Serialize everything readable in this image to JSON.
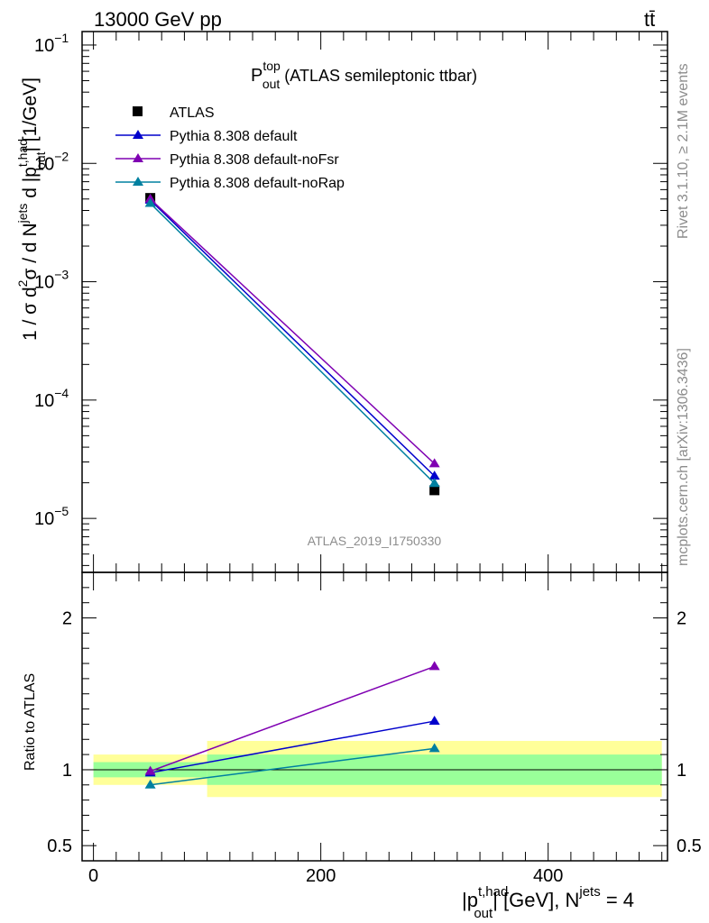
{
  "header": {
    "energy_label": "13000 GeV pp",
    "process_label": "tt̄",
    "side_label_rivet": "Rivet 3.1.10, ≥ 2.1M events",
    "side_label_mcplots": "mcplots.cern.ch [arXiv:1306.3436]"
  },
  "chart_data": [
    {
      "type": "line",
      "title": {
        "main": "P",
        "sup": "top",
        "sub": "out",
        "rest": " (ATLAS semileptonic ttbar)"
      },
      "ylabel": "1 / σ d²σ / d N^jets d |p_out^t,had| [1/GeV]",
      "ylabel_parts": {
        "a": "1 / σ d",
        "b_sup": "2",
        "c": "σ / d N",
        "d_sup": "jets",
        "e": " d |p",
        "f_sup": "t,had",
        "f_sub": "out",
        "g": "| [1/GeV]"
      },
      "yscale": "log",
      "ylim": [
        3.5e-06,
        0.13
      ],
      "xlim": [
        -10,
        505
      ],
      "yticks": [
        {
          "value": 0.1,
          "label": "10",
          "exp": "−1"
        },
        {
          "value": 0.01,
          "label": "10",
          "exp": "−2"
        },
        {
          "value": 0.001,
          "label": "10",
          "exp": "−3"
        },
        {
          "value": 0.0001,
          "label": "10",
          "exp": "−4"
        },
        {
          "value": 1e-05,
          "label": "10",
          "exp": "−5"
        }
      ],
      "watermark": "ATLAS_2019_I1750330",
      "legend_position": "top-left",
      "data_series": {
        "name": "ATLAS",
        "x": [
          50,
          300
        ],
        "y": [
          0.0051,
          1.73e-05
        ]
      },
      "series": [
        {
          "name": "Pythia 8.308 default",
          "color": "#0000cc",
          "x": [
            50,
            300
          ],
          "y": [
            0.0049,
            2.28e-05
          ]
        },
        {
          "name": "Pythia 8.308 default-noFsr",
          "color": "#7f00b2",
          "x": [
            50,
            300
          ],
          "y": [
            0.005,
            2.9e-05
          ]
        },
        {
          "name": "Pythia 8.308 default-noRap",
          "color": "#0080a0",
          "x": [
            50,
            300
          ],
          "y": [
            0.0046,
            1.98e-05
          ]
        }
      ]
    },
    {
      "type": "line",
      "ylabel": "Ratio to ATLAS",
      "ylim": [
        0.4,
        2.3
      ],
      "xlim": [
        -10,
        505
      ],
      "yticks": [
        {
          "value": 0.5,
          "label": "0.5"
        },
        {
          "value": 1,
          "label": "1"
        },
        {
          "value": 2,
          "label": "2"
        }
      ],
      "xticks": [
        {
          "value": 0,
          "label": "0"
        },
        {
          "value": 200,
          "label": "200"
        },
        {
          "value": 400,
          "label": "400"
        }
      ],
      "xlabel": "|p_out^t,had| [GeV], N^jets = 4",
      "xlabel_parts": {
        "a": "|p",
        "b_sup": "t,had",
        "b_sub": "out",
        "c": "| [GeV], N",
        "d_sup": "jets",
        "e": " = 4"
      },
      "uncertainty_bands": [
        {
          "x": [
            0,
            100
          ],
          "inner": [
            0.95,
            1.05
          ],
          "outer": [
            0.9,
            1.1
          ]
        },
        {
          "x": [
            100,
            500
          ],
          "inner": [
            0.9,
            1.1
          ],
          "outer": [
            0.82,
            1.19
          ]
        }
      ],
      "series": [
        {
          "name": "Pythia 8.308 default",
          "color": "#0000cc",
          "x": [
            50,
            300
          ],
          "y": [
            0.98,
            1.32
          ]
        },
        {
          "name": "Pythia 8.308 default-noFsr",
          "color": "#7f00b2",
          "x": [
            50,
            300
          ],
          "y": [
            0.99,
            1.68
          ]
        },
        {
          "name": "Pythia 8.308 default-noRap",
          "color": "#0080a0",
          "x": [
            50,
            300
          ],
          "y": [
            0.9,
            1.14
          ]
        }
      ]
    }
  ]
}
